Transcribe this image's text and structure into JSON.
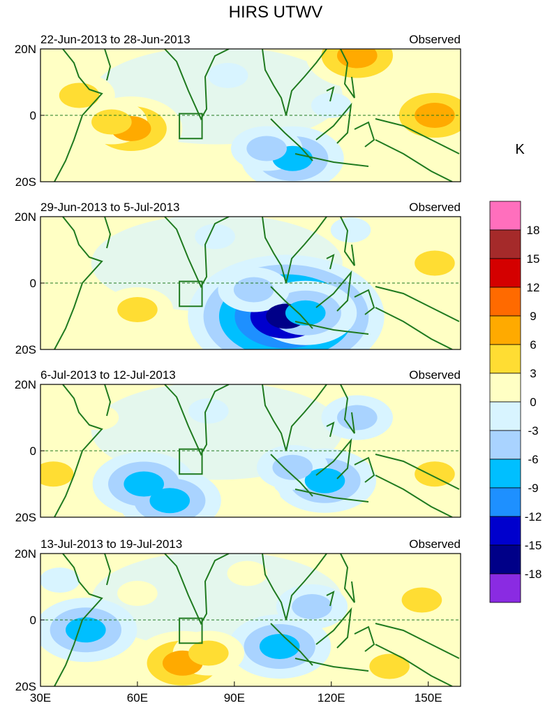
{
  "chart_data": {
    "type": "heatmap",
    "title": "HIRS UTWV",
    "unit": "K",
    "x_ticks": [
      "30E",
      "60E",
      "90E",
      "120E",
      "150E"
    ],
    "x_range": [
      30,
      160
    ],
    "y_ticks": [
      "20N",
      "0",
      "20S"
    ],
    "y_range": [
      -20,
      20
    ],
    "colorbar": {
      "levels": [
        "18",
        "15",
        "12",
        "9",
        "6",
        "3",
        "0",
        "-3",
        "-6",
        "-9",
        "-12",
        "-15",
        "-18"
      ],
      "colors": [
        "#ff6fbd",
        "#a52a2a",
        "#d40000",
        "#ff6a00",
        "#ffaa00",
        "#ffdd33",
        "#ffffc4",
        "#d8f4ff",
        "#a9d3ff",
        "#00bfff",
        "#1e90ff",
        "#0000cd",
        "#000088",
        "#8a2be2"
      ]
    },
    "panels": [
      {
        "period": "22-Jun-2013 to 28-Jun-2013",
        "label": "Observed",
        "anomalies": [
          {
            "lon": 42,
            "lat": 6,
            "value": 4
          },
          {
            "lon": 58,
            "lat": -4,
            "value": 8
          },
          {
            "lon": 52,
            "lat": -2,
            "value": 5
          },
          {
            "lon": 34,
            "lat": -12,
            "value": 3
          },
          {
            "lon": 128,
            "lat": 18,
            "value": 7
          },
          {
            "lon": 152,
            "lat": 0,
            "value": 8
          },
          {
            "lon": 108,
            "lat": -13,
            "value": -8
          },
          {
            "lon": 100,
            "lat": -10,
            "value": -4
          },
          {
            "lon": 88,
            "lat": 12,
            "value": -2
          },
          {
            "lon": 120,
            "lat": 3,
            "value": -2
          },
          {
            "lon": 142,
            "lat": -13,
            "value": 3
          }
        ]
      },
      {
        "period": "29-Jun-2013 to 5-Jul-2013",
        "label": "Observed",
        "anomalies": [
          {
            "lon": 106,
            "lat": -10,
            "value": -16
          },
          {
            "lon": 112,
            "lat": -9,
            "value": -8
          },
          {
            "lon": 96,
            "lat": -2,
            "value": -4
          },
          {
            "lon": 138,
            "lat": 12,
            "value": 3
          },
          {
            "lon": 152,
            "lat": 6,
            "value": 4
          },
          {
            "lon": 60,
            "lat": -8,
            "value": 4
          },
          {
            "lon": 40,
            "lat": -4,
            "value": 3
          },
          {
            "lon": 84,
            "lat": 14,
            "value": -2
          },
          {
            "lon": 126,
            "lat": 16,
            "value": -2
          },
          {
            "lon": 146,
            "lat": -15,
            "value": 3
          }
        ]
      },
      {
        "period": "6-Jul-2013 to 12-Jul-2013",
        "label": "Observed",
        "anomalies": [
          {
            "lon": 70,
            "lat": -15,
            "value": -9
          },
          {
            "lon": 62,
            "lat": -10,
            "value": -7
          },
          {
            "lon": 118,
            "lat": -9,
            "value": -8
          },
          {
            "lon": 108,
            "lat": -5,
            "value": -4
          },
          {
            "lon": 34,
            "lat": -7,
            "value": 4
          },
          {
            "lon": 48,
            "lat": 10,
            "value": 2
          },
          {
            "lon": 152,
            "lat": -7,
            "value": 4
          },
          {
            "lon": 146,
            "lat": 10,
            "value": 2
          },
          {
            "lon": 98,
            "lat": -14,
            "value": 3
          },
          {
            "lon": 82,
            "lat": 12,
            "value": -3
          },
          {
            "lon": 128,
            "lat": 10,
            "value": -4
          }
        ]
      },
      {
        "period": "13-Jul-2013 to 19-Jul-2013",
        "label": "Observed",
        "anomalies": [
          {
            "lon": 44,
            "lat": -3,
            "value": -8
          },
          {
            "lon": 104,
            "lat": -8,
            "value": -8
          },
          {
            "lon": 114,
            "lat": 4,
            "value": -4
          },
          {
            "lon": 74,
            "lat": -13,
            "value": 8
          },
          {
            "lon": 82,
            "lat": -10,
            "value": 5
          },
          {
            "lon": 138,
            "lat": -14,
            "value": 6
          },
          {
            "lon": 148,
            "lat": 6,
            "value": 5
          },
          {
            "lon": 94,
            "lat": 14,
            "value": 3
          },
          {
            "lon": 36,
            "lat": 12,
            "value": -3
          },
          {
            "lon": 60,
            "lat": 8,
            "value": 2
          }
        ]
      }
    ]
  }
}
